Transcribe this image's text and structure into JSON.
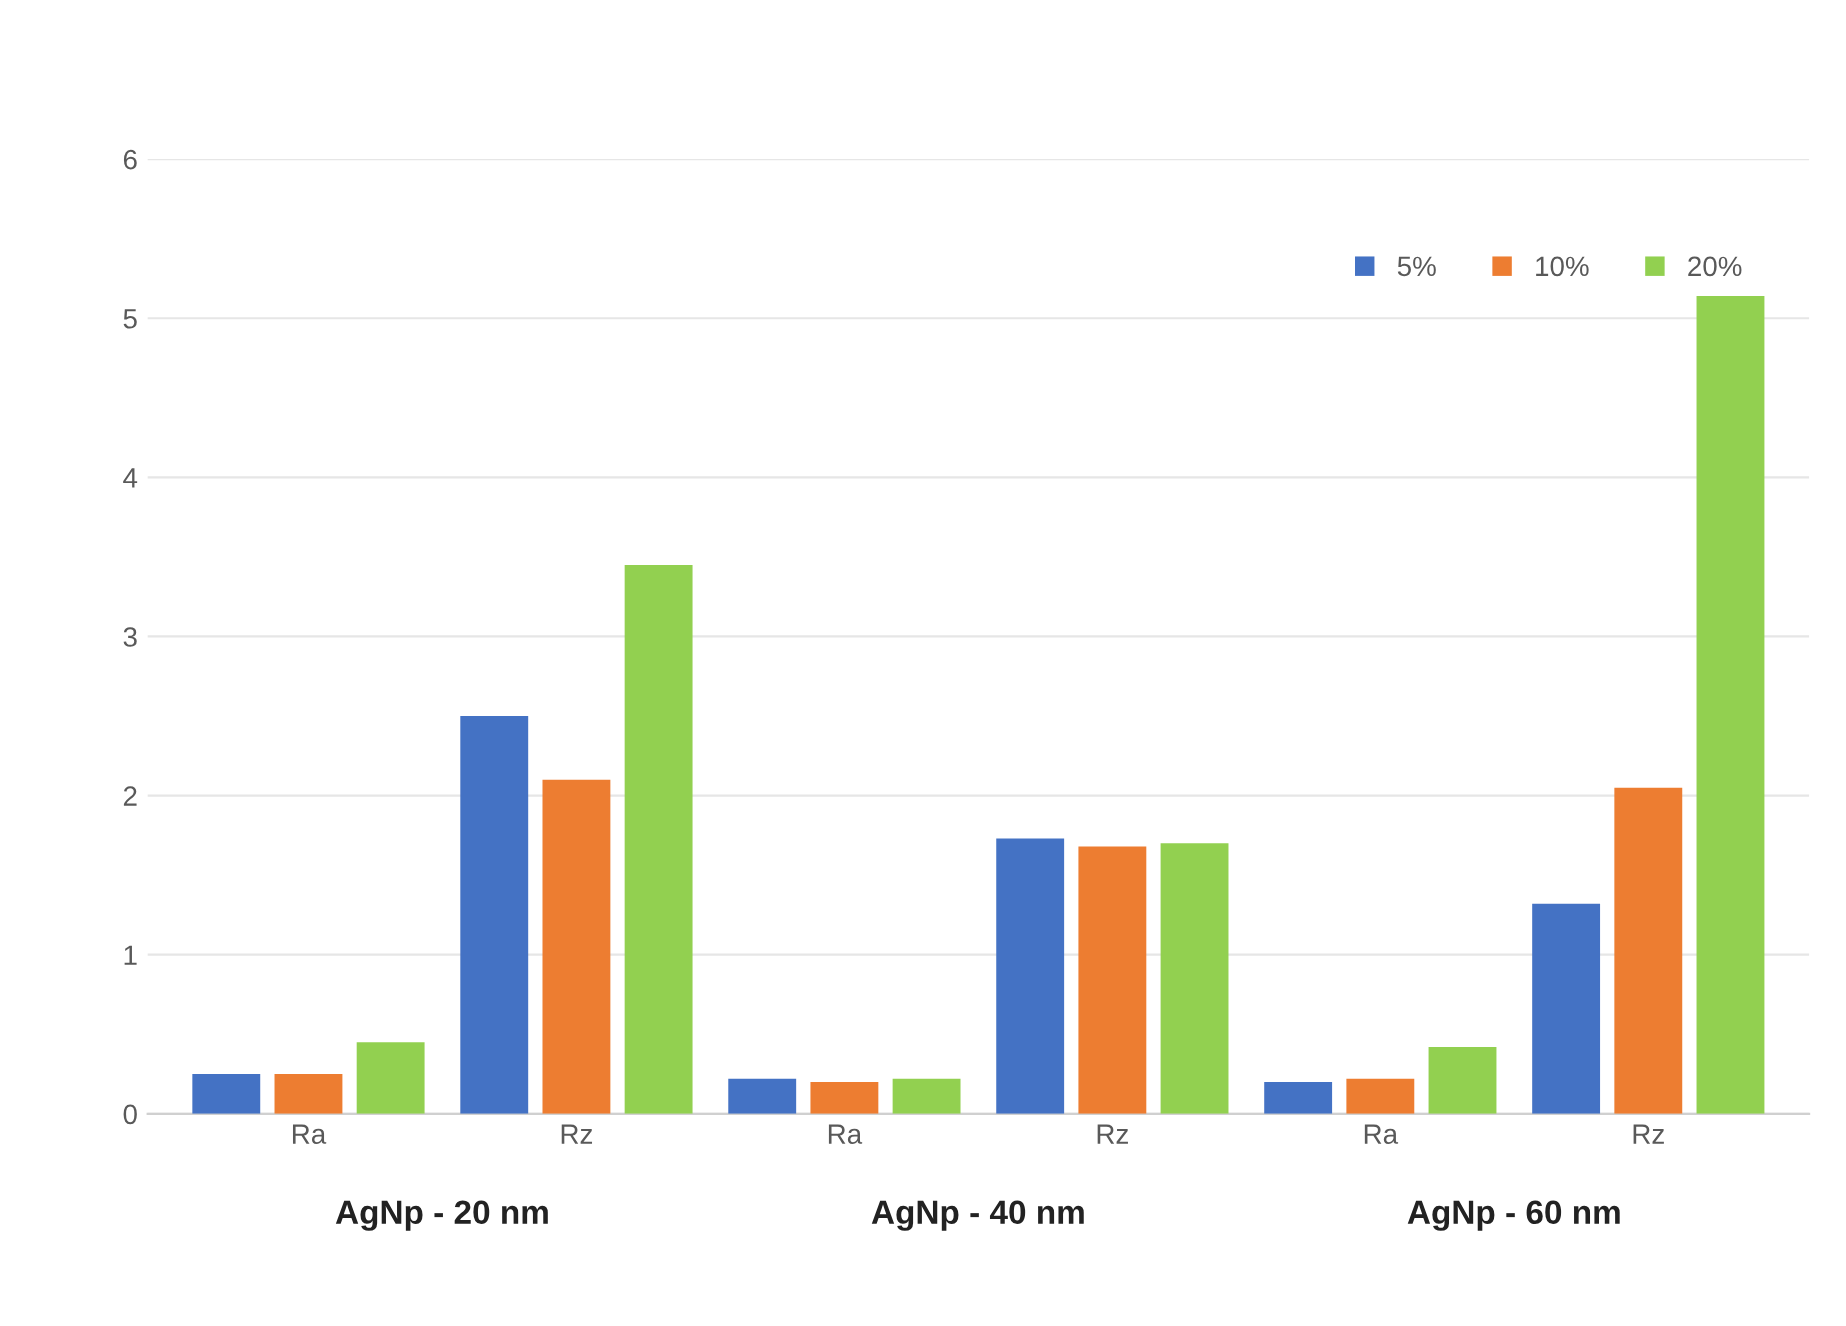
{
  "chart_data": {
    "type": "bar",
    "categories": [
      "Ra",
      "Rz",
      "Ra",
      "Rz",
      "Ra",
      "Rz"
    ],
    "series": [
      {
        "name": "5%",
        "color": "#4472c4",
        "values": [
          0.25,
          2.5,
          0.22,
          1.73,
          0.2,
          1.32
        ]
      },
      {
        "name": "10%",
        "color": "#ed7d31",
        "values": [
          0.25,
          2.1,
          0.2,
          1.68,
          0.22,
          2.05
        ]
      },
      {
        "name": "20%",
        "color": "#92d050",
        "values": [
          0.45,
          3.45,
          0.22,
          1.7,
          0.42,
          5.14
        ]
      }
    ],
    "annotations": [
      "AgNp - 20 nm",
      "AgNp - 40 nm",
      "AgNp - 60 nm"
    ],
    "ylim": [
      0,
      6
    ],
    "yticks": [
      0,
      1,
      2,
      3,
      4,
      5,
      6
    ],
    "grid": "y",
    "legend": "top right"
  }
}
